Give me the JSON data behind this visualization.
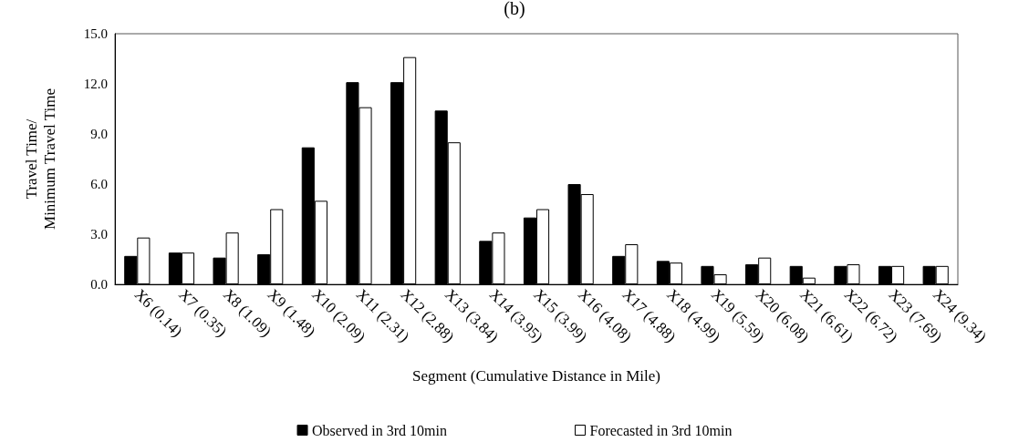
{
  "chart_data": {
    "type": "bar",
    "title": "(b)",
    "xlabel": "Segment (Cumulative Distance in Mile)",
    "ylabel": "Travel Time/\nMinimum Travel Time",
    "categories": [
      "X6 (0.14)",
      "X7 (0.35)",
      "X8 (1.09)",
      "X9 (1.48)",
      "X10 (2.09)",
      "X11 (2.31)",
      "X12 (2.88)",
      "X13 (3.84)",
      "X14 (3.95)",
      "X15 (3.99)",
      "X16 (4.08)",
      "X17 (4.88)",
      "X18 (4.99)",
      "X19 (5.59)",
      "X20 (6.08)",
      "X21 (6.61)",
      "X22 (6.72)",
      "X23 (7.69)",
      "X24 (9.34)"
    ],
    "series": [
      {
        "name": "Observed in 3rd 10min",
        "color": "#000000",
        "values": [
          1.7,
          1.9,
          1.6,
          1.8,
          8.2,
          12.1,
          12.1,
          10.4,
          2.6,
          4.0,
          6.0,
          1.7,
          1.4,
          1.1,
          1.2,
          1.1,
          1.1,
          1.1,
          1.1
        ]
      },
      {
        "name": "Forecasted in 3rd 10min",
        "color": "#ffffff",
        "values": [
          2.8,
          1.9,
          3.1,
          4.5,
          5.0,
          10.6,
          13.6,
          8.5,
          3.1,
          4.5,
          5.4,
          2.4,
          1.3,
          0.6,
          1.6,
          0.4,
          1.2,
          1.1,
          1.1
        ]
      }
    ],
    "ylim": [
      0,
      15
    ],
    "yticks": [
      {
        "value": 0,
        "label": "0.0"
      },
      {
        "value": 3,
        "label": "3.0"
      },
      {
        "value": 6,
        "label": "6.0"
      },
      {
        "value": 9,
        "label": "9.0"
      },
      {
        "value": 12,
        "label": "12.0"
      },
      {
        "value": 15,
        "label": "15.0"
      }
    ],
    "grid": false,
    "legend": "bottom"
  }
}
